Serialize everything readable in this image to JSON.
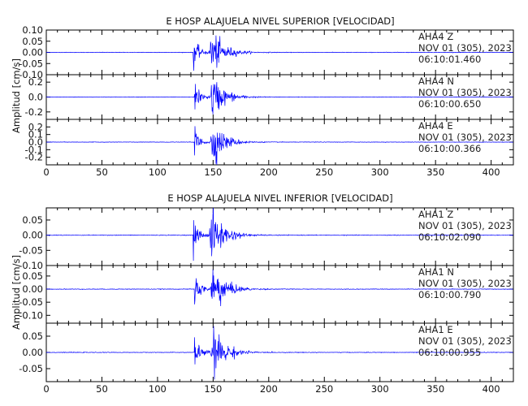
{
  "chart_data": [
    {
      "type": "line",
      "title": "E HOSP ALAJUELA NIVEL SUPERIOR [VELOCIDAD]",
      "ylabel": "Amplitud [cm/s]",
      "xlabel": "",
      "xlim": [
        0,
        420
      ],
      "xticks": [
        "0",
        "50",
        "100",
        "150",
        "200",
        "250",
        "300",
        "350",
        "400"
      ],
      "grid": false,
      "series": [
        {
          "name": "AHA4 Z",
          "date": "NOV 01 (305), 2023",
          "time": "06:10:01.460",
          "ylim": [
            -0.1,
            0.1
          ],
          "yticks": [
            "0.10",
            "0.05",
            "0.00",
            "-0.05",
            "-0.10"
          ],
          "onset_s": 132,
          "secondary_s": 148,
          "peak_amplitude": 0.1,
          "coda_end_s": 250
        },
        {
          "name": "AHA4 N",
          "date": "NOV 01 (305), 2023",
          "time": "06:10:00.650",
          "ylim": [
            -0.3,
            0.3
          ],
          "yticks": [
            "0.2",
            "0.0",
            "-0.2"
          ],
          "onset_s": 133,
          "secondary_s": 149,
          "peak_amplitude": 0.28,
          "coda_end_s": 260
        },
        {
          "name": "AHA4 E",
          "date": "NOV 01 (305), 2023",
          "time": "06:10:00.366",
          "ylim": [
            -0.3,
            0.3
          ],
          "yticks": [
            "0.2",
            "0.1",
            "0.0",
            "-0.1",
            "-0.2"
          ],
          "onset_s": 133,
          "secondary_s": 149,
          "peak_amplitude": 0.27,
          "coda_end_s": 260
        }
      ]
    },
    {
      "type": "line",
      "title": "E HOSP ALAJUELA NIVEL INFERIOR [VELOCIDAD]",
      "ylabel": "Amplitud [cm/s]",
      "xlabel": "",
      "xlim": [
        0,
        420
      ],
      "xticks": [
        "0",
        "50",
        "100",
        "150",
        "200",
        "250",
        "300",
        "350",
        "400"
      ],
      "grid": false,
      "series": [
        {
          "name": "AHA1 Z",
          "date": "NOV 01 (305), 2023",
          "time": "06:10:02.090",
          "ylim": [
            -0.1,
            0.09
          ],
          "yticks": [
            "0.05",
            "0.00",
            "-0.05",
            "-0.10"
          ],
          "onset_s": 132,
          "secondary_s": 148,
          "peak_amplitude": 0.09,
          "coda_end_s": 250
        },
        {
          "name": "AHA1 N",
          "date": "NOV 01 (305), 2023",
          "time": "06:10:00.790",
          "ylim": [
            -0.13,
            0.09
          ],
          "yticks": [
            "0.05",
            "0.00",
            "-0.05",
            "-0.10"
          ],
          "onset_s": 133,
          "secondary_s": 149,
          "peak_amplitude": 0.1,
          "coda_end_s": 270
        },
        {
          "name": "AHA1 E",
          "date": "NOV 01 (305), 2023",
          "time": "06:10:00.955",
          "ylim": [
            -0.09,
            0.09
          ],
          "yticks": [
            "0.05",
            "0.00",
            "-0.05"
          ],
          "onset_s": 133,
          "secondary_s": 149,
          "peak_amplitude": 0.08,
          "coda_end_s": 280
        }
      ]
    }
  ]
}
